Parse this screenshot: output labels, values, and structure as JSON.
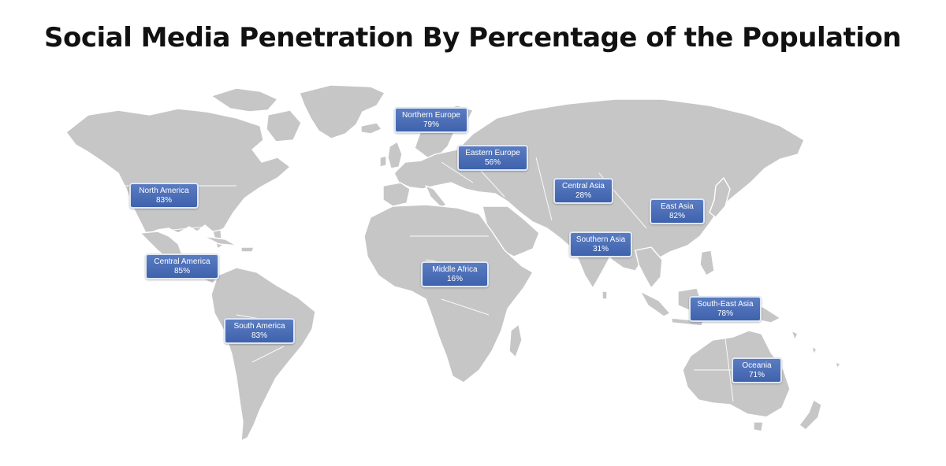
{
  "title": "Social Media Penetration By Percentage of the Population",
  "colors": {
    "land": "#c6c6c6",
    "label_fill": "#4a6fb8",
    "label_border": "#dfe7f6",
    "label_text": "#ffffff",
    "title_text": "#111111"
  },
  "regions": [
    {
      "id": "north-america",
      "name": "North America",
      "value": "83%"
    },
    {
      "id": "central-america",
      "name": "Central America",
      "value": "85%"
    },
    {
      "id": "south-america",
      "name": "South America",
      "value": "83%"
    },
    {
      "id": "northern-europe",
      "name": "Northern Europe",
      "value": "79%"
    },
    {
      "id": "eastern-europe",
      "name": "Eastern Europe",
      "value": "56%"
    },
    {
      "id": "middle-africa",
      "name": "Middle Africa",
      "value": "16%"
    },
    {
      "id": "central-asia",
      "name": "Central Asia",
      "value": "28%"
    },
    {
      "id": "southern-asia",
      "name": "Southern Asia",
      "value": "31%"
    },
    {
      "id": "east-asia",
      "name": "East Asia",
      "value": "82%"
    },
    {
      "id": "south-east-asia",
      "name": "South-East Asia",
      "value": "78%"
    },
    {
      "id": "oceania",
      "name": "Oceania",
      "value": "71%"
    }
  ]
}
